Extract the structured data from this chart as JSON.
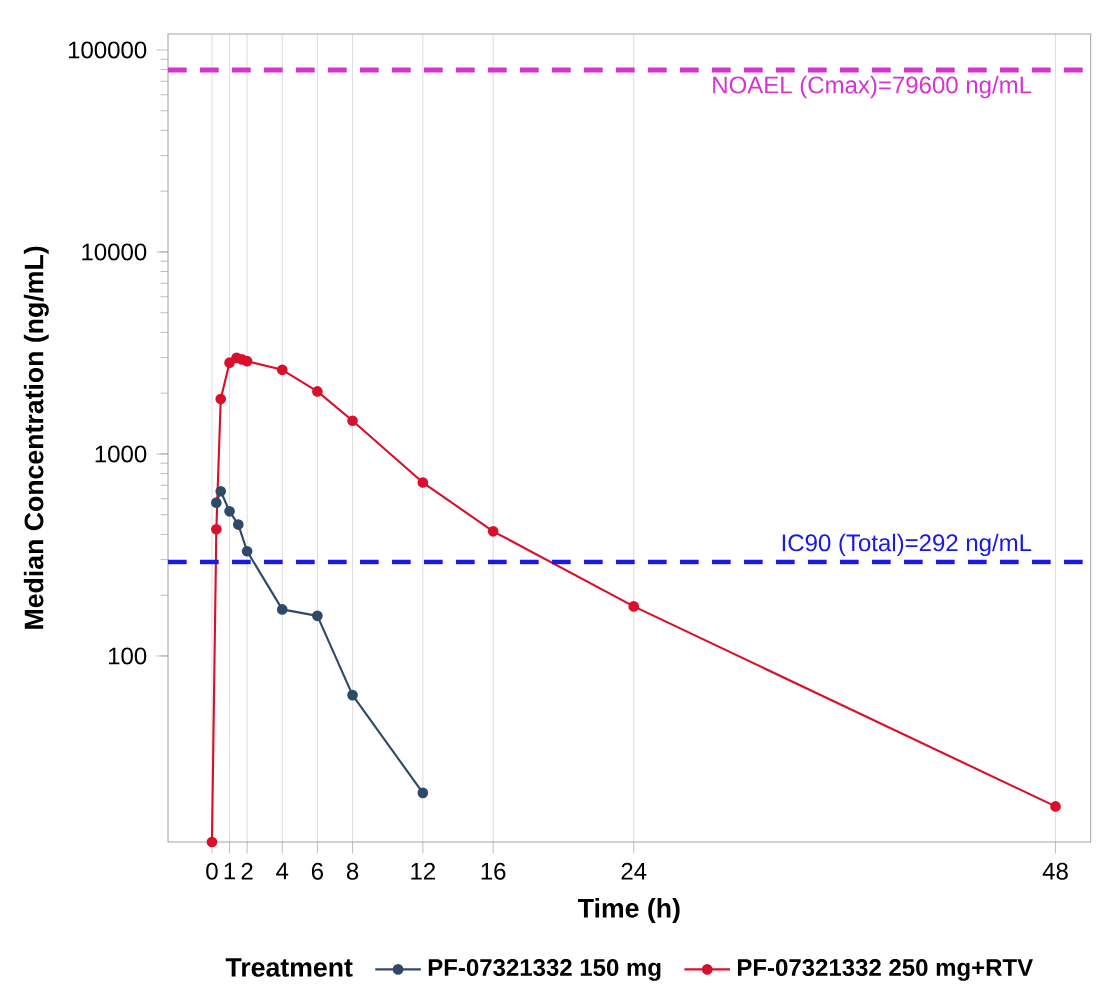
{
  "chart_data": {
    "type": "line",
    "xlabel": "Time (h)",
    "ylabel": "Median Concentration (ng/mL)",
    "legend_title": "Treatment",
    "xlim": [
      -2.5,
      50
    ],
    "xticks": [
      0,
      1,
      2,
      4,
      6,
      8,
      12,
      16,
      24,
      48
    ],
    "ylim": [
      12,
      120000
    ],
    "yticks": [
      100,
      1000,
      10000,
      100000
    ],
    "log": "y",
    "grid": "x",
    "legend": "bottom",
    "marker": "circle",
    "line_style": "solid",
    "series": [
      {
        "name": "PF-07321332 150 mg",
        "color": "#2f4a68",
        "x": [
          0.25,
          0.5,
          1,
          1.5,
          2,
          4,
          6,
          8,
          12
        ],
        "values": [
          574,
          654,
          520,
          447,
          330,
          170,
          158,
          64,
          21
        ]
      },
      {
        "name": "PF-07321332 250 mg+RTV",
        "color": "#d9102c",
        "x": [
          0,
          0.25,
          0.5,
          1,
          1.4,
          1.7,
          2,
          4,
          6,
          8,
          12,
          16,
          24,
          48
        ],
        "values": [
          12,
          424,
          1870,
          2830,
          2990,
          2940,
          2880,
          2610,
          2040,
          1460,
          722,
          414,
          176,
          18
        ]
      }
    ],
    "ref_lines": [
      {
        "axis": "y",
        "value": 79600,
        "label": "NOAEL (Cmax)=79600 ng/mL",
        "color": "#d633d0",
        "line_style": "dashed"
      },
      {
        "axis": "y",
        "value": 292,
        "label": "IC90 (Total)=292 ng/mL",
        "color": "#1a1ae6",
        "line_style": "dashed"
      }
    ]
  }
}
